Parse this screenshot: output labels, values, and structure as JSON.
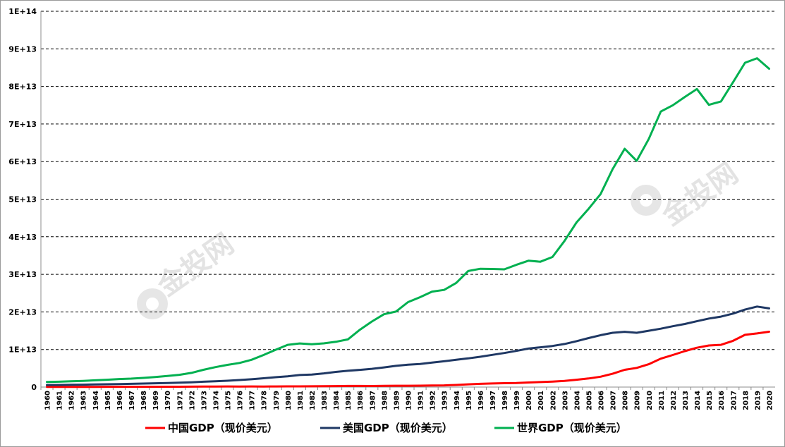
{
  "chart_data": {
    "type": "line",
    "title": "",
    "xlabel": "",
    "ylabel": "",
    "ylim": [
      0,
      100000000000000
    ],
    "yticks": [
      "0",
      "1E+13",
      "2E+13",
      "3E+13",
      "4E+13",
      "5E+13",
      "6E+13",
      "7E+13",
      "8E+13",
      "9E+13",
      "1E+14"
    ],
    "grid": "horizontal dashed",
    "legend_position": "bottom",
    "x": [
      "1960",
      "1961",
      "1962",
      "1963",
      "1964",
      "1965",
      "1966",
      "1967",
      "1968",
      "1969",
      "1970",
      "1971",
      "1972",
      "1973",
      "1974",
      "1975",
      "1976",
      "1977",
      "1978",
      "1979",
      "1980",
      "1981",
      "1982",
      "1983",
      "1984",
      "1985",
      "1986",
      "1987",
      "1988",
      "1989",
      "1990",
      "1991",
      "1992",
      "1993",
      "1994",
      "1995",
      "1996",
      "1997",
      "1998",
      "1999",
      "2000",
      "2001",
      "2002",
      "2003",
      "2004",
      "2005",
      "2006",
      "2007",
      "2008",
      "2009",
      "2010",
      "2011",
      "2012",
      "2013",
      "2014",
      "2015",
      "2016",
      "2017",
      "2018",
      "2019",
      "2020"
    ],
    "series": [
      {
        "name": "中国GDP（现价美元）",
        "color": "#ff0000",
        "values": [
          59700000000.0,
          50000000000.0,
          47200000000.0,
          50700000000.0,
          59700000000.0,
          70400000000.0,
          76700000000.0,
          72900000000.0,
          70000000000.0,
          78700000000.0,
          92600000000.0,
          99800000000.0,
          114000000000.0,
          139000000000.0,
          144000000000.0,
          163000000000.0,
          154000000000.0,
          175000000000.0,
          149000000000.0,
          178000000000.0,
          191000000000.0,
          196000000000.0,
          205000000000.0,
          230000000000.0,
          260000000000.0,
          309000000000.0,
          300000000000.0,
          273000000000.0,
          312000000000.0,
          348000000000.0,
          361000000000.0,
          383000000000.0,
          427000000000.0,
          445000000000.0,
          564000000000.0,
          734000000000.0,
          863000000000.0,
          962000000000.0,
          1029000000000.0,
          1094000000000.0,
          1211000000000.0,
          1339000000000.0,
          1471000000000.0,
          1660000000000.0,
          1955000000000.0,
          2286000000000.0,
          2752000000000.0,
          3552000000000.0,
          4594000000000.0,
          5102000000000.0,
          6087000000000.0,
          7552000000000.0,
          8532000000000.0,
          9570000000000.0,
          10476000000000.0,
          11062000000000.0,
          11233000000000.0,
          12310000000000.0,
          13895000000000.0,
          14280000000000.0,
          14723000000000.0
        ]
      },
      {
        "name": "美国GDP（现价美元）",
        "color": "#1f3864",
        "values": [
          543000000000.0,
          563000000000.0,
          605000000000.0,
          639000000000.0,
          686000000000.0,
          744000000000.0,
          815000000000.0,
          862000000000.0,
          943000000000.0,
          1019000000000.0,
          1073000000000.0,
          1165000000000.0,
          1279000000000.0,
          1425000000000.0,
          1545000000000.0,
          1685000000000.0,
          1873000000000.0,
          2082000000000.0,
          2352000000000.0,
          2627000000000.0,
          2857000000000.0,
          3207000000000.0,
          3343000000000.0,
          3634000000000.0,
          4037000000000.0,
          4339000000000.0,
          4580000000000.0,
          4855000000000.0,
          5236000000000.0,
          5642000000000.0,
          5963000000000.0,
          6158000000000.0,
          6520000000000.0,
          6859000000000.0,
          7287000000000.0,
          7640000000000.0,
          8073000000000.0,
          8578000000000.0,
          9063000000000.0,
          9631000000000.0,
          10252000000000.0,
          10582000000000.0,
          10936000000000.0,
          11458000000000.0,
          12214000000000.0,
          13037000000000.0,
          13815000000000.0,
          14452000000000.0,
          14713000000000.0,
          14449000000000.0,
          14992000000000.0,
          15543000000000.0,
          16197000000000.0,
          16785000000000.0,
          17527000000000.0,
          18238000000000.0,
          18745000000000.0,
          19543000000000.0,
          20612000000000.0,
          21433000000000.0,
          20937000000000.0
        ]
      },
      {
        "name": "世界GDP（现价美元）",
        "color": "#00b050",
        "values": [
          1370000000000.0,
          1420000000000.0,
          1530000000000.0,
          1650000000000.0,
          1800000000000.0,
          1960000000000.0,
          2130000000000.0,
          2260000000000.0,
          2430000000000.0,
          2680000000000.0,
          2960000000000.0,
          3270000000000.0,
          3770000000000.0,
          4590000000000.0,
          5310000000000.0,
          5910000000000.0,
          6420000000000.0,
          7270000000000.0,
          8540000000000.0,
          9930000000000.0,
          11240000000000.0,
          11610000000000.0,
          11400000000000.0,
          11630000000000.0,
          12050000000000.0,
          12680000000000.0,
          15260000000000.0,
          17450000000000.0,
          19390000000000.0,
          20100000000000.0,
          22600000000000.0,
          23920000000000.0,
          25410000000000.0,
          25850000000000.0,
          27720000000000.0,
          30890000000000.0,
          31490000000000.0,
          31420000000000.0,
          31330000000000.0,
          32540000000000.0,
          33620000000000.0,
          33360000000000.0,
          34620000000000.0,
          38900000000000.0,
          43810000000000.0,
          47430000000000.0,
          51360000000000.0,
          58000000000000.0,
          63420000000000.0,
          60180000000000.0,
          66000000000000.0,
          73320000000000.0,
          75000000000000.0,
          77200000000000.0,
          79300000000000.0,
          75100000000000.0,
          76000000000000.0,
          81100000000000.0,
          86300000000000.0,
          87500000000000.0,
          84700000000000.0
        ]
      }
    ]
  },
  "watermark": {
    "text": "金投网"
  }
}
